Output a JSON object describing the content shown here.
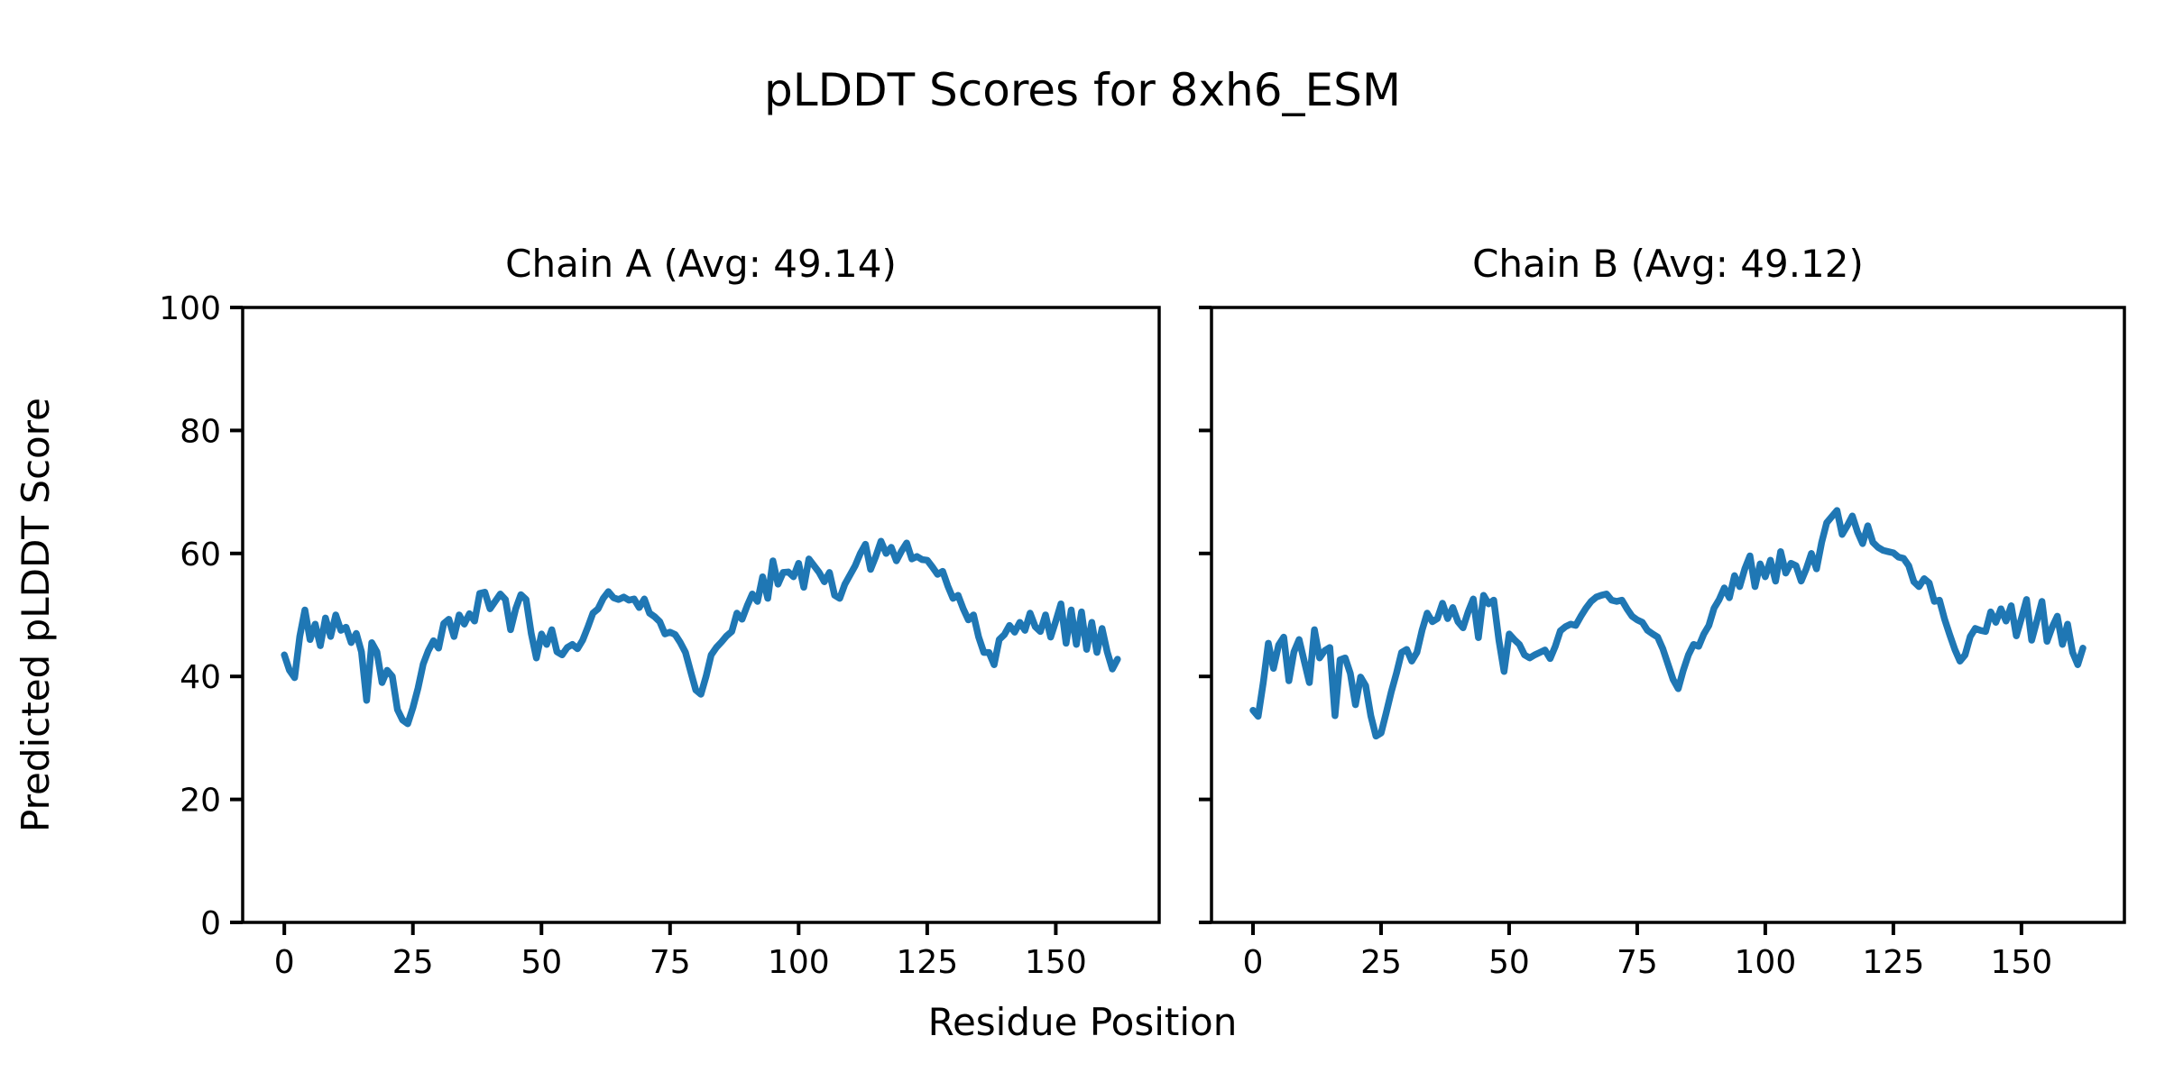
{
  "figure": {
    "title": "pLDDT Scores for 8xh6_ESM",
    "background_color": "#ffffff",
    "text_color": "#000000",
    "spine_color": "#000000"
  },
  "chart_data": {
    "type": "line",
    "line_color": "#1f77b4",
    "line_width": 7.5,
    "xlabel": "Residue Position",
    "ylabel": "Predicted pLDDT Score",
    "xlim": [
      -8.1,
      170.1
    ],
    "ylim": [
      0,
      100
    ],
    "xticks": [
      0,
      25,
      50,
      75,
      100,
      125,
      150
    ],
    "yticks": [
      0,
      20,
      40,
      60,
      80,
      100
    ],
    "grid": false,
    "legend_position": "none",
    "subplots": [
      {
        "title": "Chain A (Avg: 49.14)",
        "avg": 49.14,
        "show_ytick_labels": true,
        "x_start": 0,
        "values": [
          43.5,
          41.0,
          39.8,
          46.5,
          50.8,
          46.0,
          48.5,
          45.0,
          49.5,
          46.5,
          50.0,
          47.5,
          48.0,
          45.5,
          47.0,
          44.0,
          36.1,
          45.5,
          44.0,
          39.0,
          41.0,
          40.0,
          34.6,
          32.9,
          32.3,
          34.9,
          38.1,
          42.0,
          44.2,
          45.8,
          44.6,
          48.6,
          49.3,
          46.5,
          50.0,
          48.5,
          50.2,
          49.0,
          53.5,
          53.7,
          51.0,
          52.2,
          53.4,
          52.5,
          47.6,
          51.0,
          53.3,
          52.5,
          47.0,
          43.0,
          46.9,
          45.2,
          47.6,
          44.0,
          43.5,
          44.7,
          45.2,
          44.5,
          45.9,
          48.0,
          50.3,
          51.0,
          52.7,
          53.8,
          52.8,
          52.5,
          52.9,
          52.4,
          52.6,
          51.2,
          52.6,
          50.3,
          49.7,
          48.9,
          46.9,
          47.2,
          46.8,
          45.5,
          43.9,
          40.8,
          37.8,
          37.1,
          40.0,
          43.5,
          44.7,
          45.6,
          46.6,
          47.3,
          50.3,
          49.3,
          51.5,
          53.4,
          52.2,
          56.2,
          52.7,
          58.8,
          55.0,
          56.9,
          57.0,
          56.2,
          58.4,
          54.5,
          59.1,
          58.0,
          56.9,
          55.4,
          56.9,
          53.2,
          52.7,
          55.0,
          56.5,
          58.0,
          60.0,
          61.5,
          57.4,
          59.5,
          62.0,
          60.0,
          61.0,
          58.8,
          60.4,
          61.7,
          59.1,
          59.5,
          59.0,
          58.9,
          57.8,
          56.6,
          57.1,
          54.7,
          52.7,
          53.2,
          51.0,
          49.2,
          50.0,
          46.4,
          43.9,
          43.9,
          41.9,
          46.0,
          46.8,
          48.3,
          47.2,
          48.8,
          47.5,
          50.3,
          48.1,
          47.3,
          50.0,
          46.4,
          49.0,
          51.8,
          45.4,
          50.8,
          45.2,
          50.5,
          44.4,
          48.8,
          43.9,
          47.8,
          44.0,
          41.2,
          42.8
        ]
      },
      {
        "title": "Chain B (Avg: 49.12)",
        "avg": 49.12,
        "show_ytick_labels": false,
        "x_start": 0,
        "values": [
          34.5,
          33.5,
          39.0,
          45.4,
          41.3,
          45.1,
          46.4,
          39.3,
          44.0,
          46.0,
          42.5,
          39.0,
          47.6,
          43.0,
          44.2,
          44.7,
          33.6,
          42.7,
          43.0,
          40.5,
          35.4,
          39.9,
          38.5,
          33.6,
          30.3,
          30.8,
          34.1,
          37.5,
          40.5,
          43.9,
          44.4,
          42.5,
          43.9,
          47.5,
          50.3,
          48.9,
          49.4,
          51.9,
          49.4,
          51.2,
          48.9,
          47.9,
          50.5,
          52.6,
          46.3,
          53.2,
          51.8,
          52.4,
          45.9,
          40.8,
          46.9,
          46.0,
          45.2,
          43.5,
          43.0,
          43.5,
          43.9,
          44.3,
          42.9,
          44.9,
          47.4,
          48.1,
          48.5,
          48.3,
          49.8,
          51.1,
          52.2,
          52.9,
          53.2,
          53.4,
          52.4,
          52.2,
          52.4,
          51.0,
          49.8,
          49.2,
          48.8,
          47.5,
          46.9,
          46.4,
          44.5,
          42.0,
          39.5,
          38.0,
          41.0,
          43.5,
          45.2,
          44.9,
          46.9,
          48.3,
          51.1,
          52.5,
          54.4,
          52.8,
          56.4,
          54.6,
          57.5,
          59.6,
          54.6,
          58.3,
          56.2,
          58.9,
          55.5,
          60.3,
          56.8,
          58.4,
          58.0,
          55.5,
          57.5,
          60.0,
          57.5,
          61.8,
          65.0,
          66.0,
          67.0,
          63.1,
          64.5,
          66.1,
          63.5,
          61.6,
          64.5,
          61.8,
          61.0,
          60.5,
          60.3,
          60.1,
          59.4,
          59.2,
          58.0,
          55.4,
          54.6,
          55.9,
          55.2,
          52.2,
          52.4,
          49.3,
          46.8,
          44.4,
          42.5,
          43.5,
          46.5,
          47.8,
          47.5,
          47.3,
          50.5,
          48.8,
          51.0,
          49.0,
          51.5,
          46.6,
          49.5,
          52.5,
          45.9,
          49.0,
          52.2,
          45.7,
          48.0,
          49.8,
          45.2,
          48.5,
          43.9,
          41.9,
          44.6
        ]
      }
    ]
  }
}
